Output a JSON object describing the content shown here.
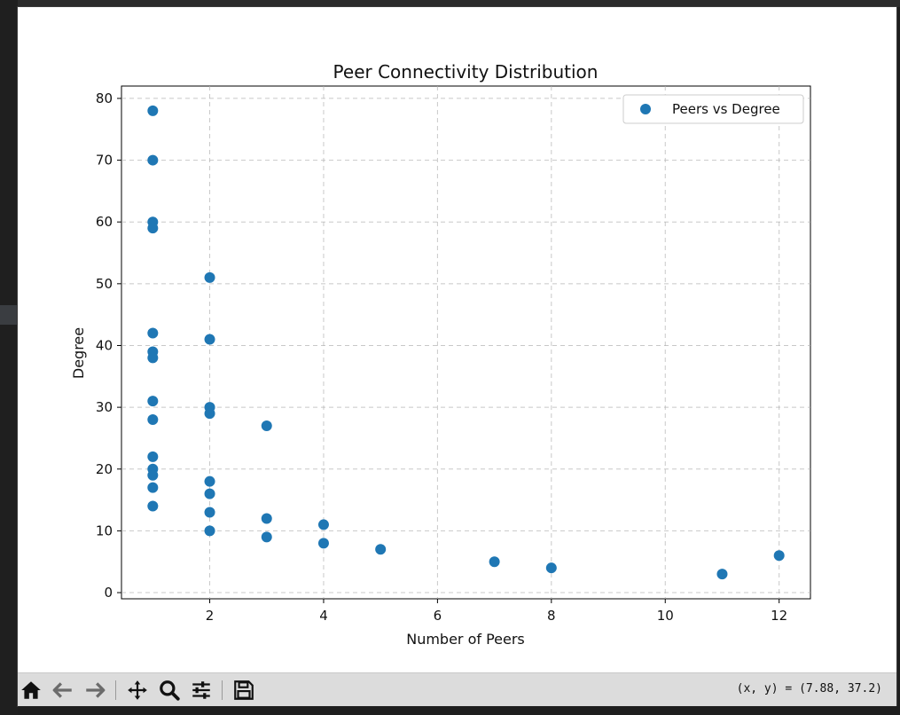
{
  "figure": {
    "coords_readout": "(x, y) = (7.88, 37.2)"
  },
  "toolbar": {
    "home_icon": "home-icon",
    "back_icon": "arrow-left-icon",
    "forward_icon": "arrow-right-icon",
    "pan_icon": "move-icon",
    "zoom_icon": "magnifier-icon",
    "configure_icon": "sliders-icon",
    "save_icon": "floppy-icon"
  },
  "chart_data": {
    "type": "scatter",
    "title": "Peer Connectivity Distribution",
    "xlabel": "Number of Peers",
    "ylabel": "Degree",
    "xlim": [
      0.45,
      12.55
    ],
    "ylim": [
      -1,
      82
    ],
    "xticks": [
      2,
      4,
      6,
      8,
      10,
      12
    ],
    "yticks": [
      0,
      10,
      20,
      30,
      40,
      50,
      60,
      70,
      80
    ],
    "grid": true,
    "legend_position": "top-right",
    "series": [
      {
        "name": "Peers vs Degree",
        "color": "#1f77b4",
        "points": [
          [
            1,
            78
          ],
          [
            1,
            70
          ],
          [
            1,
            60
          ],
          [
            1,
            59
          ],
          [
            1,
            42
          ],
          [
            1,
            39
          ],
          [
            1,
            38
          ],
          [
            1,
            31
          ],
          [
            1,
            28
          ],
          [
            1,
            22
          ],
          [
            1,
            20
          ],
          [
            1,
            19
          ],
          [
            1,
            17
          ],
          [
            1,
            14
          ],
          [
            2,
            51
          ],
          [
            2,
            41
          ],
          [
            2,
            30
          ],
          [
            2,
            29
          ],
          [
            2,
            18
          ],
          [
            2,
            16
          ],
          [
            2,
            13
          ],
          [
            2,
            10
          ],
          [
            3,
            27
          ],
          [
            3,
            12
          ],
          [
            3,
            9
          ],
          [
            4,
            11
          ],
          [
            4,
            8
          ],
          [
            5,
            7
          ],
          [
            7,
            5
          ],
          [
            8,
            4
          ],
          [
            11,
            3
          ],
          [
            12,
            6
          ]
        ]
      }
    ]
  }
}
